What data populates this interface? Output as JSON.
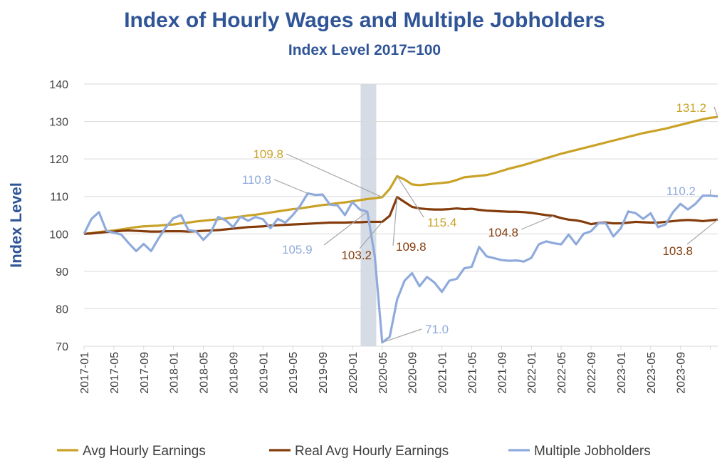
{
  "chart_data": {
    "type": "line",
    "title": "Index of Hourly Wages and Multiple Jobholders",
    "subtitle": "Index Level 2017=100",
    "xlabel": "",
    "ylabel": "Index Level",
    "ylim": [
      70,
      140
    ],
    "yticks": [
      "70",
      "80",
      "90",
      "100",
      "110",
      "120",
      "130",
      "140"
    ],
    "grid": true,
    "legend_position": "bottom",
    "x_start": "2017-01",
    "x_tick_labels": [
      "2017-01",
      "2017-05",
      "2017-09",
      "2018-01",
      "2018-05",
      "2018-09",
      "2019-01",
      "2019-05",
      "2019-09",
      "2020-01",
      "2020-05",
      "2020-09",
      "2021-01",
      "2021-05",
      "2021-09",
      "2022-01",
      "2022-05",
      "2022-09",
      "2023-01",
      "2023-05",
      "2023-09"
    ],
    "recession_shading": [
      "2020-03",
      "2020-04"
    ],
    "series": [
      {
        "name": "Avg Hourly Earnings",
        "color": "#c9a227",
        "values": [
          100.0,
          100.2,
          100.5,
          100.7,
          100.9,
          101.2,
          101.5,
          101.8,
          102.0,
          102.1,
          102.2,
          102.4,
          102.5,
          102.8,
          103.0,
          103.3,
          103.5,
          103.7,
          103.9,
          104.1,
          104.4,
          104.6,
          104.9,
          105.1,
          105.4,
          105.7,
          106.0,
          106.3,
          106.6,
          106.8,
          107.1,
          107.4,
          107.7,
          107.9,
          108.2,
          108.4,
          108.7,
          109.0,
          109.3,
          109.5,
          109.8,
          112.0,
          115.4,
          114.5,
          113.2,
          113.0,
          113.2,
          113.4,
          113.6,
          113.8,
          114.4,
          115.1,
          115.3,
          115.5,
          115.7,
          116.2,
          116.8,
          117.4,
          117.9,
          118.4,
          119.0,
          119.6,
          120.2,
          120.8,
          121.4,
          121.9,
          122.4,
          122.9,
          123.4,
          123.9,
          124.4,
          124.9,
          125.4,
          125.9,
          126.4,
          126.9,
          127.3,
          127.7,
          128.1,
          128.6,
          129.1,
          129.6,
          130.1,
          130.6,
          131.0,
          131.2
        ]
      },
      {
        "name": "Real Avg Hourly Earnings",
        "color": "#843c0c",
        "values": [
          100.0,
          100.1,
          100.3,
          100.5,
          100.6,
          100.8,
          100.9,
          100.8,
          100.7,
          100.6,
          100.6,
          100.7,
          100.7,
          100.7,
          100.6,
          100.7,
          100.8,
          100.9,
          101.0,
          101.2,
          101.4,
          101.6,
          101.8,
          101.9,
          102.0,
          102.2,
          102.3,
          102.4,
          102.5,
          102.6,
          102.7,
          102.8,
          102.9,
          103.0,
          103.0,
          103.0,
          103.1,
          103.1,
          103.2,
          103.2,
          103.2,
          104.8,
          109.8,
          108.5,
          107.2,
          106.8,
          106.6,
          106.5,
          106.5,
          106.6,
          106.8,
          106.6,
          106.7,
          106.4,
          106.2,
          106.1,
          106.0,
          105.9,
          105.9,
          105.8,
          105.6,
          105.3,
          105.0,
          104.8,
          104.2,
          103.8,
          103.6,
          103.2,
          102.6,
          102.9,
          103.0,
          102.8,
          102.8,
          103.0,
          103.2,
          103.1,
          103.0,
          103.0,
          103.2,
          103.4,
          103.6,
          103.7,
          103.6,
          103.4,
          103.6,
          103.8
        ]
      },
      {
        "name": "Multiple Jobholders",
        "color": "#8faadc",
        "values": [
          100.0,
          104.0,
          105.8,
          100.8,
          100.3,
          99.8,
          97.5,
          95.4,
          97.3,
          95.4,
          98.8,
          101.8,
          104.2,
          105.0,
          101.0,
          100.7,
          98.4,
          100.4,
          104.5,
          103.6,
          101.8,
          104.6,
          103.5,
          104.5,
          103.9,
          101.5,
          104.0,
          103.0,
          105.0,
          107.5,
          110.8,
          110.4,
          110.5,
          107.8,
          107.6,
          105.0,
          108.5,
          106.5,
          105.9,
          94.0,
          71.0,
          72.5,
          82.5,
          87.5,
          89.5,
          86.0,
          88.5,
          87.0,
          84.5,
          87.5,
          88.0,
          90.8,
          91.2,
          96.5,
          94.0,
          93.5,
          93.0,
          92.8,
          92.9,
          92.6,
          93.6,
          97.2,
          98.0,
          97.5,
          97.2,
          99.8,
          97.2,
          100.0,
          100.7,
          102.8,
          102.8,
          99.3,
          101.5,
          106.0,
          105.5,
          104.0,
          105.5,
          101.8,
          102.5,
          105.8,
          108.0,
          106.5,
          108.0,
          110.2,
          110.2,
          110.0
        ]
      }
    ],
    "annotations": [
      {
        "text": "131.2",
        "series": 0
      },
      {
        "text": "109.8",
        "series": 0
      },
      {
        "text": "115.4",
        "series": 0
      },
      {
        "text": "110.8",
        "series": 2
      },
      {
        "text": "105.9",
        "series": 2
      },
      {
        "text": "71.0",
        "series": 2
      },
      {
        "text": "110.2",
        "series": 2
      },
      {
        "text": "103.2",
        "series": 1
      },
      {
        "text": "109.8",
        "series": 1
      },
      {
        "text": "104.8",
        "series": 1
      },
      {
        "text": "103.8",
        "series": 1
      }
    ],
    "colors": {
      "title": "#2f5597",
      "axis_text": "#404040",
      "grid": "#d9d9d9",
      "shade": "#d6dce5",
      "leader": "#a6a6a6"
    }
  }
}
